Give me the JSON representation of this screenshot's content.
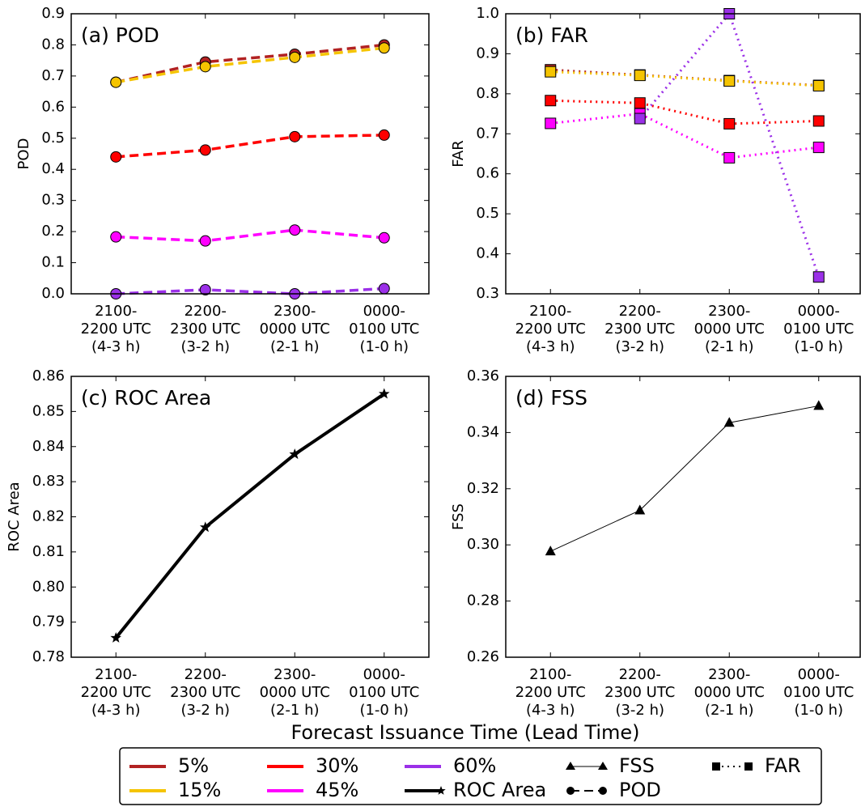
{
  "chart_data": [
    {
      "type": "line",
      "title": "(a) POD",
      "ylabel": "POD",
      "legend_label": "POD",
      "marker": "circle",
      "linestyle": "dashed",
      "categories": [
        "2100-\n2200 UTC\n(4-3 h)",
        "2200-\n2300 UTC\n(3-2 h)",
        "2300-\n0000 UTC\n(2-1 h)",
        "0000-\n0100 UTC\n(1-0 h)"
      ],
      "ylim": [
        0,
        0.9
      ],
      "yticks": [
        {
          "value": 0,
          "label": "0.0"
        },
        0.1,
        0.2,
        0.3,
        0.4,
        0.5,
        0.6,
        0.7,
        0.8,
        0.9
      ],
      "series": [
        {
          "name": "5%",
          "color": "#b22222",
          "values": [
            0.68,
            0.745,
            0.77,
            0.8
          ]
        },
        {
          "name": "15%",
          "color": "#f5c400",
          "values": [
            0.68,
            0.73,
            0.76,
            0.79
          ]
        },
        {
          "name": "30%",
          "color": "#ff0000",
          "values": [
            0.44,
            0.462,
            0.505,
            0.51
          ]
        },
        {
          "name": "45%",
          "color": "#ff00ff",
          "values": [
            0.183,
            0.17,
            0.205,
            0.18
          ]
        },
        {
          "name": "60%",
          "color": "#9b30e8",
          "values": [
            0.0,
            0.013,
            0.0,
            0.017
          ]
        }
      ]
    },
    {
      "type": "line",
      "title": "(b) FAR",
      "ylabel": "FAR",
      "legend_label": "FAR",
      "marker": "square",
      "linestyle": "dotted",
      "categories": [
        "2100-\n2200 UTC\n(4-3 h)",
        "2200-\n2300 UTC\n(3-2 h)",
        "2300-\n0000 UTC\n(2-1 h)",
        "0000-\n0100 UTC\n(1-0 h)"
      ],
      "ylim": [
        0.3,
        1.0
      ],
      "yticks": [
        0.3,
        0.4,
        0.5,
        0.6,
        0.7,
        0.8,
        0.9,
        {
          "value": 1.0,
          "label": "1.0"
        }
      ],
      "series": [
        {
          "name": "5%",
          "color": "#b22222",
          "values": [
            0.86,
            0.847,
            0.833,
            0.821
          ]
        },
        {
          "name": "15%",
          "color": "#f5c400",
          "values": [
            0.855,
            0.846,
            0.832,
            0.82
          ]
        },
        {
          "name": "30%",
          "color": "#ff0000",
          "values": [
            0.783,
            0.777,
            0.725,
            0.732
          ]
        },
        {
          "name": "45%",
          "color": "#ff00ff",
          "values": [
            0.726,
            0.75,
            0.64,
            0.666
          ]
        },
        {
          "name": "60%",
          "color": "#9b30e8",
          "values": [
            null,
            0.738,
            1.0,
            0.342
          ]
        }
      ]
    },
    {
      "type": "line",
      "title": "(c) ROC Area",
      "ylabel": "ROC Area",
      "marker": "star",
      "linestyle": "solid",
      "categories": [
        "2100-\n2200 UTC\n(4-3 h)",
        "2200-\n2300 UTC\n(3-2 h)",
        "2300-\n0000 UTC\n(2-1 h)",
        "0000-\n0100 UTC\n(1-0 h)"
      ],
      "ylim": [
        0.78,
        0.86
      ],
      "yticks": [
        0.78,
        0.79,
        {
          "value": 0.8,
          "label": "0.80"
        },
        0.81,
        0.82,
        0.83,
        0.84,
        0.85,
        0.86
      ],
      "series": [
        {
          "name": "ROC Area",
          "color": "#000000",
          "values": [
            0.7855,
            0.817,
            0.8378,
            0.855
          ]
        }
      ]
    },
    {
      "type": "line",
      "title": "(d) FSS",
      "ylabel": "FSS",
      "marker": "triangle",
      "linestyle": "thin",
      "categories": [
        "2100-\n2200 UTC\n(4-3 h)",
        "2200-\n2300 UTC\n(3-2 h)",
        "2300-\n0000 UTC\n(2-1 h)",
        "0000-\n0100 UTC\n(1-0 h)"
      ],
      "ylim": [
        0.26,
        0.36
      ],
      "yticks": [
        0.26,
        0.28,
        {
          "value": 0.3,
          "label": "0.30"
        },
        0.32,
        0.34,
        0.36
      ],
      "series": [
        {
          "name": "FSS",
          "color": "#000000",
          "values": [
            0.2977,
            0.3123,
            0.3435,
            0.3495
          ]
        }
      ]
    }
  ],
  "xlabel": "Forecast Issuance Time (Lead Time)"
}
